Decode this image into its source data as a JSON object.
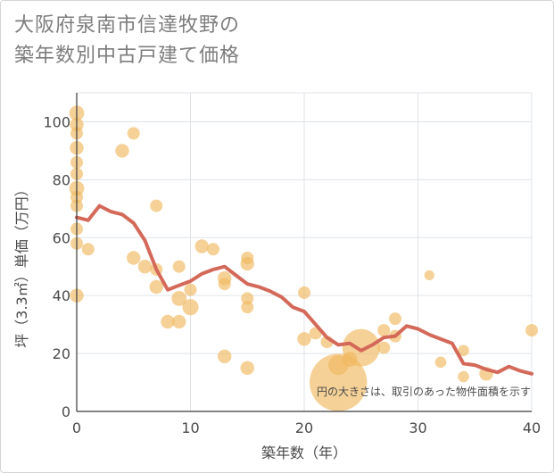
{
  "title": {
    "line1": "大阪府泉南市信達牧野の",
    "line2": "築年数別中古戸建て価格"
  },
  "chart_data": {
    "type": "scatter",
    "xlabel": "築年数（年）",
    "ylabel": "坪（3.3㎡）単価（万円）",
    "xlim": [
      0,
      40
    ],
    "ylim": [
      0,
      110
    ],
    "xticks": [
      0,
      10,
      20,
      30,
      40
    ],
    "yticks": [
      0,
      20,
      40,
      60,
      80,
      100
    ],
    "grid": true,
    "annotation": "円の大きさは、取引のあった物件面積を示す",
    "colors": {
      "bubble": "#f0b860",
      "line": "#d4695a",
      "grid": "#dfe3e8"
    },
    "series": [
      {
        "type": "bubble",
        "points": [
          {
            "x": 0,
            "y": 103,
            "s": 1.2
          },
          {
            "x": 0,
            "y": 99,
            "s": 1.1
          },
          {
            "x": 0,
            "y": 96,
            "s": 1
          },
          {
            "x": 0,
            "y": 91,
            "s": 1.1
          },
          {
            "x": 0,
            "y": 86,
            "s": 1
          },
          {
            "x": 0,
            "y": 82,
            "s": 1
          },
          {
            "x": 0,
            "y": 77,
            "s": 1.2
          },
          {
            "x": 0,
            "y": 74,
            "s": 1
          },
          {
            "x": 0,
            "y": 71,
            "s": 1
          },
          {
            "x": 0,
            "y": 63,
            "s": 1
          },
          {
            "x": 0,
            "y": 58,
            "s": 1
          },
          {
            "x": 0,
            "y": 40,
            "s": 1.1
          },
          {
            "x": 1,
            "y": 56,
            "s": 1
          },
          {
            "x": 4,
            "y": 90,
            "s": 1.1
          },
          {
            "x": 5,
            "y": 96,
            "s": 1
          },
          {
            "x": 5,
            "y": 53,
            "s": 1.1
          },
          {
            "x": 6,
            "y": 50,
            "s": 1.1
          },
          {
            "x": 7,
            "y": 71,
            "s": 1
          },
          {
            "x": 7,
            "y": 49,
            "s": 1
          },
          {
            "x": 7,
            "y": 43,
            "s": 1.1
          },
          {
            "x": 8,
            "y": 31,
            "s": 1.1
          },
          {
            "x": 9,
            "y": 50,
            "s": 1
          },
          {
            "x": 9,
            "y": 39,
            "s": 1.2
          },
          {
            "x": 9,
            "y": 31,
            "s": 1.1
          },
          {
            "x": 10,
            "y": 42,
            "s": 1
          },
          {
            "x": 10,
            "y": 36,
            "s": 1.3
          },
          {
            "x": 11,
            "y": 57,
            "s": 1.1
          },
          {
            "x": 12,
            "y": 56,
            "s": 1
          },
          {
            "x": 13,
            "y": 46,
            "s": 1.1
          },
          {
            "x": 13,
            "y": 44,
            "s": 1
          },
          {
            "x": 13,
            "y": 19,
            "s": 1.1
          },
          {
            "x": 15,
            "y": 53,
            "s": 1
          },
          {
            "x": 15,
            "y": 51,
            "s": 1.1
          },
          {
            "x": 15,
            "y": 39,
            "s": 1
          },
          {
            "x": 15,
            "y": 36,
            "s": 1
          },
          {
            "x": 15,
            "y": 15,
            "s": 1.1
          },
          {
            "x": 20,
            "y": 41,
            "s": 1
          },
          {
            "x": 20,
            "y": 25,
            "s": 1.1
          },
          {
            "x": 21,
            "y": 27,
            "s": 1
          },
          {
            "x": 22,
            "y": 24,
            "s": 1
          },
          {
            "x": 23,
            "y": 16,
            "s": 1.6
          },
          {
            "x": 23,
            "y": 10,
            "s": 4.6
          },
          {
            "x": 24,
            "y": 18,
            "s": 1.2
          },
          {
            "x": 25,
            "y": 22,
            "s": 3
          },
          {
            "x": 27,
            "y": 28,
            "s": 1
          },
          {
            "x": 27,
            "y": 22,
            "s": 1
          },
          {
            "x": 28,
            "y": 32,
            "s": 1
          },
          {
            "x": 28,
            "y": 26,
            "s": 1
          },
          {
            "x": 31,
            "y": 47,
            "s": 0.8
          },
          {
            "x": 32,
            "y": 17,
            "s": 0.9
          },
          {
            "x": 34,
            "y": 21,
            "s": 0.9
          },
          {
            "x": 34,
            "y": 12,
            "s": 0.9
          },
          {
            "x": 36,
            "y": 13,
            "s": 1.1
          },
          {
            "x": 40,
            "y": 28,
            "s": 1
          }
        ]
      },
      {
        "type": "line",
        "points": [
          {
            "x": 0,
            "y": 67
          },
          {
            "x": 1,
            "y": 66
          },
          {
            "x": 2,
            "y": 71
          },
          {
            "x": 3,
            "y": 69
          },
          {
            "x": 4,
            "y": 68
          },
          {
            "x": 5,
            "y": 65
          },
          {
            "x": 6,
            "y": 59
          },
          {
            "x": 7,
            "y": 49
          },
          {
            "x": 8,
            "y": 42
          },
          {
            "x": 9,
            "y": 43.5
          },
          {
            "x": 10,
            "y": 45
          },
          {
            "x": 11,
            "y": 47.5
          },
          {
            "x": 12,
            "y": 49
          },
          {
            "x": 13,
            "y": 50
          },
          {
            "x": 14,
            "y": 47
          },
          {
            "x": 15,
            "y": 44
          },
          {
            "x": 16,
            "y": 43
          },
          {
            "x": 17,
            "y": 41.5
          },
          {
            "x": 18,
            "y": 39.5
          },
          {
            "x": 19,
            "y": 36
          },
          {
            "x": 20,
            "y": 34.5
          },
          {
            "x": 21,
            "y": 30
          },
          {
            "x": 22,
            "y": 25.5
          },
          {
            "x": 23,
            "y": 23
          },
          {
            "x": 24,
            "y": 23.5
          },
          {
            "x": 25,
            "y": 21
          },
          {
            "x": 26,
            "y": 23
          },
          {
            "x": 27,
            "y": 25.5
          },
          {
            "x": 28,
            "y": 26
          },
          {
            "x": 29,
            "y": 29.5
          },
          {
            "x": 30,
            "y": 28.5
          },
          {
            "x": 31,
            "y": 26.5
          },
          {
            "x": 32,
            "y": 25
          },
          {
            "x": 33,
            "y": 23.5
          },
          {
            "x": 34,
            "y": 16.5
          },
          {
            "x": 35,
            "y": 16
          },
          {
            "x": 36,
            "y": 14.5
          },
          {
            "x": 37,
            "y": 13.5
          },
          {
            "x": 38,
            "y": 15.5
          },
          {
            "x": 39,
            "y": 14
          },
          {
            "x": 40,
            "y": 13
          }
        ]
      }
    ]
  }
}
